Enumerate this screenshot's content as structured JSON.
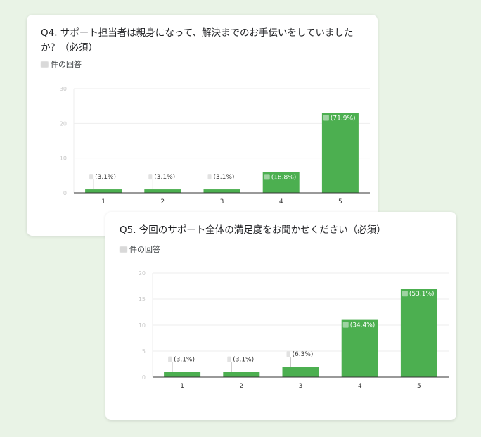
{
  "colors": {
    "bar": "#4caf50",
    "grid": "#eeeeee",
    "axis": "#333333",
    "background": "#e9f3e6"
  },
  "chart_data": [
    {
      "type": "bar",
      "title": "Q4. サポート担当者は親身になって、解決までのお手伝いをしていましたか？（必須）",
      "response_label": "件の回答",
      "categories": [
        "1",
        "2",
        "3",
        "4",
        "5"
      ],
      "values": [
        1,
        1,
        1,
        6,
        23
      ],
      "labels": [
        "(3.1%)",
        "(3.1%)",
        "(3.1%)",
        "(18.8%)",
        "(71.9%)"
      ],
      "yticks": [
        0,
        10,
        20,
        30
      ],
      "ylim": [
        0,
        30
      ],
      "grid": true,
      "legend": "none"
    },
    {
      "type": "bar",
      "title": "Q5. 今回のサポート全体の満足度をお聞かせください（必須）",
      "response_label": "件の回答",
      "categories": [
        "1",
        "2",
        "3",
        "4",
        "5"
      ],
      "values": [
        1,
        1,
        2,
        11,
        17
      ],
      "labels": [
        "(3.1%)",
        "(3.1%)",
        "(6.3%)",
        "(34.4%)",
        "(53.1%)"
      ],
      "yticks": [
        0,
        5,
        10,
        15,
        20
      ],
      "ylim": [
        0,
        20
      ],
      "grid": true,
      "legend": "none"
    }
  ]
}
